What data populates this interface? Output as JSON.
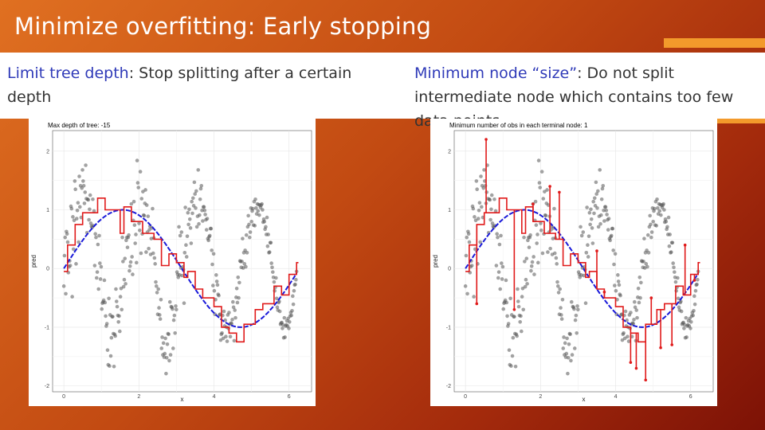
{
  "slide": {
    "title": "Minimize overfitting: Early stopping",
    "left_text": {
      "highlight": "Limit tree depth",
      "rest": ": Stop splitting after a certain depth"
    },
    "right_text": {
      "highlight": "Minimum node “size”",
      "rest": ": Do not split intermediate node which contains too few data points"
    },
    "colors": {
      "highlight": "#2f3ab8",
      "accent": "#f39a2b",
      "tree_fit": "#e01a1a",
      "true_curve": "#1a1ad9",
      "points": "#555555"
    }
  },
  "chart_data": [
    {
      "type": "scatter",
      "title": "Max depth of tree: -15",
      "xlabel": "x",
      "ylabel": "pred",
      "xlim": [
        -0.3,
        6.6
      ],
      "ylim": [
        -2.1,
        2.35
      ],
      "xticks": [
        0,
        2,
        4,
        6
      ],
      "yticks": [
        -2,
        -1,
        0,
        1,
        2
      ],
      "grid": true,
      "legend": "none",
      "points_y": [
        -0.3,
        0.22,
        0.53,
        -0.43,
        0.63,
        0.59,
        0.45,
        -0.07,
        0.03,
        0.13,
        0.05,
        1.06,
        1.02,
        -0.48,
        0.88,
        0.33,
        0.82,
        1.49,
        1.35,
        0.08,
        0.85,
        0.99,
        1.12,
        0.45,
        1.57,
        1.05,
        1.41,
        0.87,
        1.37,
        1.68,
        1.49,
        1.41,
        1.11,
        1.3,
        1.76,
        1.19,
        0.61,
        1.18,
        1.17,
        0.83,
        1.01,
        1.25,
        0.77,
        0.72,
        0.7,
        1.18,
        0.73,
        0.98,
        0.05,
        0.59,
        0.53,
        -0.16,
        -0.06,
        0.41,
        -0.35,
        0.56,
        0.09,
        -0.18,
        0.03,
        -0.69,
        -0.59,
        -0.57,
        -0.54,
        -0.2,
        -0.58,
        -0.81,
        -0.98,
        -0.94,
        -1.39,
        -1.64,
        -0.51,
        -1.66,
        -0.79,
        -1.49,
        -1.18,
        -0.82,
        -0.82,
        -1.11,
        -1.67,
        -1.12,
        -1.15,
        -0.35,
        -0.56,
        -0.65,
        -0.8,
        -0.91,
        -0.81,
        -1.07,
        -0.48,
        -0.34,
        -0.7,
        0.53,
        0.12,
        -0.31,
        -0.19,
        0.17,
        -0.26,
        0.48,
        0.53,
        0.36,
        0.53,
        0.57,
        -0.04,
        0.04,
        0.11,
        1.1,
        0.2,
        -0.1,
        0.82,
        1.14,
        0.74,
        0.43,
        0.58,
        0.1,
        1.84,
        1.46,
        1.38,
        0.77,
        0.65,
        1.65,
        0.26,
        1.19,
        0.59,
        1.31,
        0.91,
        0.9,
        1.11,
        1.34,
        0.28,
        1.08,
        0.62,
        0.89,
        0.34,
        0.66,
        0.72,
        0.24,
        0.51,
        0.69,
        1.02,
        0.26,
        0.52,
        0.18,
        0.08,
        -0.23,
        -0.3,
        -0.41,
        -0.78,
        -0.35,
        -0.67,
        -0.79,
        -0.86,
        -0.53,
        -1.36,
        -1.17,
        -1.47,
        -1.27,
        -1.51,
        -1.45,
        -1.19,
        -1.79,
        -1.52,
        -1.29,
        -1.11,
        -1.12,
        -1.57,
        -0.57,
        -1.47,
        -0.65,
        -0.66,
        -0.69,
        -1.36,
        -0.88,
        -0.8,
        -1.1,
        -0.64,
        -0.7,
        -0.06,
        -0.1,
        -0.15,
        0.71,
        -0.11,
        0.56,
        0.01,
        0.62,
        -0.12,
        0.03,
        -0.02,
        -0.59,
        0.27,
        1.04,
        0.4,
        0.2,
        0.55,
        0.95,
        0.75,
        1.01,
        0.84,
        0.69,
        0.43,
        1.14,
        0.94,
        1.2,
        1.07,
        1.47,
        1.27,
        1.03,
        1.32,
        0.71,
        0.89,
        1.68,
        0.76,
        0.91,
        1.18,
        1.36,
        1.41,
        0.99,
        0.81,
        1.05,
        1.05,
        0.99,
        0.92,
        0.83,
        0.66,
        0.85,
        0.51,
        0.48,
        0.54,
        0.56,
        0.68,
        0.68,
        0.31,
        0.07,
        -0.29,
        0.25,
        -0.38,
        -0.78,
        -0.53,
        -0.11,
        -0.22,
        -0.28,
        -0.44,
        -0.46,
        -0.79,
        -0.78,
        -1.22,
        -1.12,
        -1.1,
        -0.8,
        -1.19,
        -0.73,
        -0.98,
        -0.88,
        -1.16,
        -1.0,
        -1.24,
        -0.79,
        -1.02,
        -0.75,
        -0.95,
        -1.16,
        -0.93,
        -0.94,
        -0.87,
        -0.57,
        -0.66,
        -1.23,
        -0.71,
        -0.84,
        -0.49,
        -0.34,
        -0.58,
        -0.15,
        -0.5,
        -0.24,
        0.13,
        0.12,
        0.02,
        0.12,
        0.51,
        0.01,
        0.27,
        0.08,
        0.31,
        0.03,
        0.57,
        0.27,
        0.71,
        0.9,
        0.75,
        0.53,
        0.62,
        1.03,
        0.8,
        0.98,
        1.02,
        0.74,
        1.14,
        0.73,
        1.18,
        1.03,
        0.93,
        1.1,
        0.98,
        1.09,
        0.91,
        1.08,
        1.04,
        1.08,
        1.1,
        1.0,
        0.79,
        0.84,
        0.8,
        0.67,
        0.71,
        0.58,
        0.87,
        0.38,
        0.58,
        0.27,
        0.28,
        0.44,
        0.44,
        0.09,
        0.02,
        -0.06,
        -0.15,
        -0.23,
        -0.38,
        -0.32,
        -0.16,
        -0.51,
        -0.66,
        -0.71,
        -0.58,
        -0.56,
        -0.73,
        -0.95,
        -0.93,
        -0.92,
        -1.02,
        -0.96,
        -1.18,
        -0.84,
        -1.17,
        -0.98,
        -0.96,
        -0.89,
        -0.98,
        -0.85,
        -1.02,
        -0.91,
        -0.81,
        -0.75,
        -0.8,
        -0.72,
        -0.47,
        -0.61,
        -0.38,
        -0.28,
        -0.27,
        -0.19,
        -0.05
      ],
      "true_curve": "sin(x)",
      "tree_fit": {
        "breaks": [
          0,
          0.1,
          0.3,
          0.5,
          0.9,
          1.1,
          1.5,
          1.6,
          1.8,
          2.1,
          2.4,
          2.6,
          2.8,
          3.0,
          3.2,
          3.3,
          3.5,
          3.7,
          4.0,
          4.2,
          4.4,
          4.6,
          4.8,
          5.1,
          5.3,
          5.6,
          5.8,
          6.0,
          6.2
        ],
        "values": [
          -0.05,
          0.4,
          0.75,
          0.95,
          1.2,
          1.0,
          0.6,
          1.05,
          0.8,
          0.6,
          0.5,
          0.05,
          0.25,
          0.1,
          -0.15,
          -0.05,
          -0.35,
          -0.5,
          -0.65,
          -1.0,
          -1.1,
          -1.25,
          -0.95,
          -0.7,
          -0.6,
          -0.3,
          -0.45,
          -0.1,
          0.1
        ]
      }
    },
    {
      "type": "scatter",
      "title": "Minimum number of obs in each terminal node: 1",
      "xlabel": "x",
      "ylabel": "pred",
      "xlim": [
        -0.3,
        6.6
      ],
      "ylim": [
        -2.1,
        2.35
      ],
      "xticks": [
        0,
        2,
        4,
        6
      ],
      "yticks": [
        -2,
        -1,
        0,
        1,
        2
      ],
      "grid": true,
      "legend": "none",
      "points_y": [
        -0.3,
        0.22,
        0.53,
        -0.43,
        0.63,
        0.59,
        0.45,
        -0.07,
        0.03,
        0.13,
        0.05,
        1.06,
        1.02,
        -0.48,
        0.88,
        0.33,
        0.82,
        1.49,
        1.35,
        0.08,
        0.85,
        0.99,
        1.12,
        0.45,
        1.57,
        1.05,
        1.41,
        0.87,
        1.37,
        1.68,
        1.49,
        1.41,
        1.11,
        1.3,
        1.76,
        1.19,
        0.61,
        1.18,
        1.17,
        0.83,
        1.01,
        1.25,
        0.77,
        0.72,
        0.7,
        1.18,
        0.73,
        0.98,
        0.05,
        0.59,
        0.53,
        -0.16,
        -0.06,
        0.41,
        -0.35,
        0.56,
        0.09,
        -0.18,
        0.03,
        -0.69,
        -0.59,
        -0.57,
        -0.54,
        -0.2,
        -0.58,
        -0.81,
        -0.98,
        -0.94,
        -1.39,
        -1.64,
        -0.51,
        -1.66,
        -0.79,
        -1.49,
        -1.18,
        -0.82,
        -0.82,
        -1.11,
        -1.67,
        -1.12,
        -1.15,
        -0.35,
        -0.56,
        -0.65,
        -0.8,
        -0.91,
        -0.81,
        -1.07,
        -0.48,
        -0.34,
        -0.7,
        0.53,
        0.12,
        -0.31,
        -0.19,
        0.17,
        -0.26,
        0.48,
        0.53,
        0.36,
        0.53,
        0.57,
        -0.04,
        0.04,
        0.11,
        1.1,
        0.2,
        -0.1,
        0.82,
        1.14,
        0.74,
        0.43,
        0.58,
        0.1,
        1.84,
        1.46,
        1.38,
        0.77,
        0.65,
        1.65,
        0.26,
        1.19,
        0.59,
        1.31,
        0.91,
        0.9,
        1.11,
        1.34,
        0.28,
        1.08,
        0.62,
        0.89,
        0.34,
        0.66,
        0.72,
        0.24,
        0.51,
        0.69,
        1.02,
        0.26,
        0.52,
        0.18,
        0.08,
        -0.23,
        -0.3,
        -0.41,
        -0.78,
        -0.35,
        -0.67,
        -0.79,
        -0.86,
        -0.53,
        -1.36,
        -1.17,
        -1.47,
        -1.27,
        -1.51,
        -1.45,
        -1.19,
        -1.79,
        -1.52,
        -1.29,
        -1.11,
        -1.12,
        -1.57,
        -0.57,
        -1.47,
        -0.65,
        -0.66,
        -0.69,
        -1.36,
        -0.88,
        -0.8,
        -1.1,
        -0.64,
        -0.7,
        -0.06,
        -0.1,
        -0.15,
        0.71,
        -0.11,
        0.56,
        0.01,
        0.62,
        -0.12,
        0.03,
        -0.02,
        -0.59,
        0.27,
        1.04,
        0.4,
        0.2,
        0.55,
        0.95,
        0.75,
        1.01,
        0.84,
        0.69,
        0.43,
        1.14,
        0.94,
        1.2,
        1.07,
        1.47,
        1.27,
        1.03,
        1.32,
        0.71,
        0.89,
        1.68,
        0.76,
        0.91,
        1.18,
        1.36,
        1.41,
        0.99,
        0.81,
        1.05,
        1.05,
        0.99,
        0.92,
        0.83,
        0.66,
        0.85,
        0.51,
        0.48,
        0.54,
        0.56,
        0.68,
        0.68,
        0.31,
        0.07,
        -0.29,
        0.25,
        -0.38,
        -0.78,
        -0.53,
        -0.11,
        -0.22,
        -0.28,
        -0.44,
        -0.46,
        -0.79,
        -0.78,
        -1.22,
        -1.12,
        -1.1,
        -0.8,
        -1.19,
        -0.73,
        -0.98,
        -0.88,
        -1.16,
        -1.0,
        -1.24,
        -0.79,
        -1.02,
        -0.75,
        -0.95,
        -1.16,
        -0.93,
        -0.94,
        -0.87,
        -0.57,
        -0.66,
        -1.23,
        -0.71,
        -0.84,
        -0.49,
        -0.34,
        -0.58,
        -0.15,
        -0.5,
        -0.24,
        0.13,
        0.12,
        0.02,
        0.12,
        0.51,
        0.01,
        0.27,
        0.08,
        0.31,
        0.03,
        0.57,
        0.27,
        0.71,
        0.9,
        0.75,
        0.53,
        0.62,
        1.03,
        0.8,
        0.98,
        1.02,
        0.74,
        1.14,
        0.73,
        1.18,
        1.03,
        0.93,
        1.1,
        0.98,
        1.09,
        0.91,
        1.08,
        1.04,
        1.08,
        1.1,
        1.0,
        0.79,
        0.84,
        0.8,
        0.67,
        0.71,
        0.58,
        0.87,
        0.38,
        0.58,
        0.27,
        0.28,
        0.44,
        0.44,
        0.09,
        0.02,
        -0.06,
        -0.15,
        -0.23,
        -0.38,
        -0.32,
        -0.16,
        -0.51,
        -0.66,
        -0.71,
        -0.58,
        -0.56,
        -0.73,
        -0.95,
        -0.93,
        -0.92,
        -1.02,
        -0.96,
        -1.18,
        -0.84,
        -1.17,
        -0.98,
        -0.96,
        -0.89,
        -0.98,
        -0.85,
        -1.02,
        -0.91,
        -0.81,
        -0.75,
        -0.8,
        -0.72,
        -0.47,
        -0.61,
        -0.38,
        -0.28,
        -0.27,
        -0.19,
        -0.05
      ],
      "true_curve": "sin(x)",
      "tree_fit": {
        "breaks": [
          0,
          0.1,
          0.3,
          0.5,
          0.9,
          1.1,
          1.5,
          1.6,
          1.8,
          2.1,
          2.4,
          2.6,
          2.8,
          3.0,
          3.2,
          3.3,
          3.5,
          3.7,
          4.0,
          4.2,
          4.4,
          4.6,
          4.8,
          5.1,
          5.3,
          5.6,
          5.8,
          6.0,
          6.2
        ],
        "values": [
          -0.05,
          0.4,
          0.75,
          0.95,
          1.2,
          1.0,
          0.6,
          1.05,
          0.8,
          0.6,
          0.5,
          0.05,
          0.25,
          0.1,
          -0.15,
          -0.05,
          -0.35,
          -0.5,
          -0.65,
          -1.0,
          -1.1,
          -1.25,
          -0.95,
          -0.7,
          -0.6,
          -0.3,
          -0.45,
          -0.1,
          0.1
        ],
        "spikes": [
          [
            0.3,
            -0.6
          ],
          [
            0.55,
            2.2
          ],
          [
            1.3,
            -0.7
          ],
          [
            1.8,
            1.1
          ],
          [
            2.25,
            1.4
          ],
          [
            2.5,
            1.3
          ],
          [
            3.5,
            0.3
          ],
          [
            3.7,
            -0.4
          ],
          [
            4.4,
            -1.6
          ],
          [
            4.55,
            -1.7
          ],
          [
            4.8,
            -1.9
          ],
          [
            4.95,
            -0.5
          ],
          [
            5.2,
            -1.35
          ],
          [
            5.5,
            -1.3
          ],
          [
            5.85,
            0.4
          ],
          [
            6.1,
            -0.2
          ]
        ]
      }
    }
  ]
}
